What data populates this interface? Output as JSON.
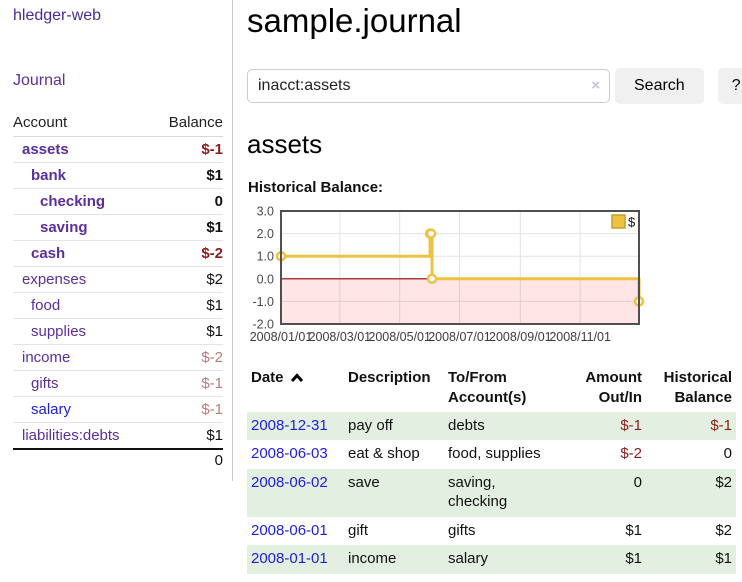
{
  "app": {
    "brand": "hledger-web",
    "nav_journal": "Journal"
  },
  "colors": {
    "visited_link_purple": "#5b2f9e",
    "unvisited_link_blue": "#2021dd",
    "negative_strong": "#8b1c1c",
    "negative_muted": "#ba7b7b",
    "row_shade_green": "#e3efe0",
    "series_gold": "#edc240"
  },
  "sidebar": {
    "header": {
      "account": "Account",
      "balance": "Balance"
    },
    "accounts": [
      {
        "name": "assets",
        "indent": 1,
        "bold": true,
        "balance": "$-1",
        "balance_style": "neg-strong",
        "link": "visited"
      },
      {
        "name": "bank",
        "indent": 2,
        "bold": true,
        "balance": "$1",
        "balance_style": "pos",
        "link": "visited"
      },
      {
        "name": "checking",
        "indent": 3,
        "bold": true,
        "balance": "0",
        "balance_style": "pos",
        "link": "visited"
      },
      {
        "name": "saving",
        "indent": 3,
        "bold": true,
        "balance": "$1",
        "balance_style": "pos",
        "link": "visited"
      },
      {
        "name": "cash",
        "indent": 2,
        "bold": true,
        "balance": "$-2",
        "balance_style": "neg-strong",
        "link": "visited"
      },
      {
        "name": "expenses",
        "indent": 1,
        "bold": false,
        "balance": "$2",
        "balance_style": "pos",
        "link": "visited"
      },
      {
        "name": "food",
        "indent": 2,
        "bold": false,
        "balance": "$1",
        "balance_style": "pos",
        "link": "visited"
      },
      {
        "name": "supplies",
        "indent": 2,
        "bold": false,
        "balance": "$1",
        "balance_style": "pos",
        "link": "visited"
      },
      {
        "name": "income",
        "indent": 1,
        "bold": false,
        "balance": "$-2",
        "balance_style": "neg-muted",
        "link": "visited"
      },
      {
        "name": "gifts",
        "indent": 2,
        "bold": false,
        "balance": "$-1",
        "balance_style": "neg-muted",
        "link": "visited"
      },
      {
        "name": "salary",
        "indent": 2,
        "bold": false,
        "balance": "$-1",
        "balance_style": "neg-muted",
        "link": "unvisited"
      },
      {
        "name": "liabilities:debts",
        "indent": 1,
        "bold": false,
        "balance": "$1",
        "balance_style": "pos",
        "link": "visited"
      }
    ],
    "total": "0"
  },
  "header": {
    "title": "sample.journal"
  },
  "search": {
    "value": "inacct:assets",
    "clear_icon": "×",
    "button_label": "Search",
    "help_label": "?"
  },
  "account_page": {
    "title": "assets",
    "chart_label": "Historical Balance:"
  },
  "chart_data": {
    "type": "line",
    "step": true,
    "title": "Historical Balance:",
    "legend": [
      {
        "label": "$",
        "color": "#edc240"
      }
    ],
    "legend_position": "top-right",
    "grid": true,
    "ylim": [
      -2,
      3
    ],
    "y_ticks": [
      3.0,
      2.0,
      1.0,
      0.0,
      -1.0,
      -2.0
    ],
    "x_ticks": [
      {
        "f": 0.0,
        "label": "2008/01/01"
      },
      {
        "f": 0.1644,
        "label": "2008/03/01"
      },
      {
        "f": 0.3315,
        "label": "2008/05/01"
      },
      {
        "f": 0.4986,
        "label": "2008/07/01"
      },
      {
        "f": 0.6685,
        "label": "2008/09/01"
      },
      {
        "f": 0.8356,
        "label": "2008/11/01"
      }
    ],
    "series": [
      {
        "name": "$",
        "color": "#edc240",
        "points": [
          {
            "date": "2008-01-01",
            "x": 0.0,
            "y": 1
          },
          {
            "date": "2008-06-01",
            "x": 0.4164,
            "y": 2
          },
          {
            "date": "2008-06-02",
            "x": 0.4192,
            "y": 2
          },
          {
            "date": "2008-06-03",
            "x": 0.4219,
            "y": 0
          },
          {
            "date": "2008-12-31",
            "x": 1.0,
            "y": -1
          }
        ]
      }
    ],
    "zero_line_color": "#8b0000",
    "negative_region_color": "rgba(255,0,0,0.10)"
  },
  "register": {
    "columns": [
      {
        "label": "Date",
        "sort": "asc",
        "align": "left"
      },
      {
        "label": "Description",
        "align": "left"
      },
      {
        "label": "To/From\nAccount(s)",
        "align": "left"
      },
      {
        "label": "Amount\nOut/In",
        "align": "right"
      },
      {
        "label": "Historical\nBalance",
        "align": "right"
      }
    ],
    "rows": [
      {
        "date": "2008-12-31",
        "description": "pay off",
        "accounts": "debts",
        "amount": "$-1",
        "amount_neg": true,
        "balance": "$-1",
        "balance_neg": true,
        "shade": true
      },
      {
        "date": "2008-06-03",
        "description": "eat & shop",
        "accounts": "food, supplies",
        "amount": "$-2",
        "amount_neg": true,
        "balance": "0",
        "balance_neg": false,
        "shade": false
      },
      {
        "date": "2008-06-02",
        "description": "save",
        "accounts": "saving,\nchecking",
        "amount": "0",
        "amount_neg": false,
        "balance": "$2",
        "balance_neg": false,
        "shade": true
      },
      {
        "date": "2008-06-01",
        "description": "gift",
        "accounts": "gifts",
        "amount": "$1",
        "amount_neg": false,
        "balance": "$2",
        "balance_neg": false,
        "shade": false
      },
      {
        "date": "2008-01-01",
        "description": "income",
        "accounts": "salary",
        "amount": "$1",
        "amount_neg": false,
        "balance": "$1",
        "balance_neg": false,
        "shade": true
      }
    ]
  }
}
